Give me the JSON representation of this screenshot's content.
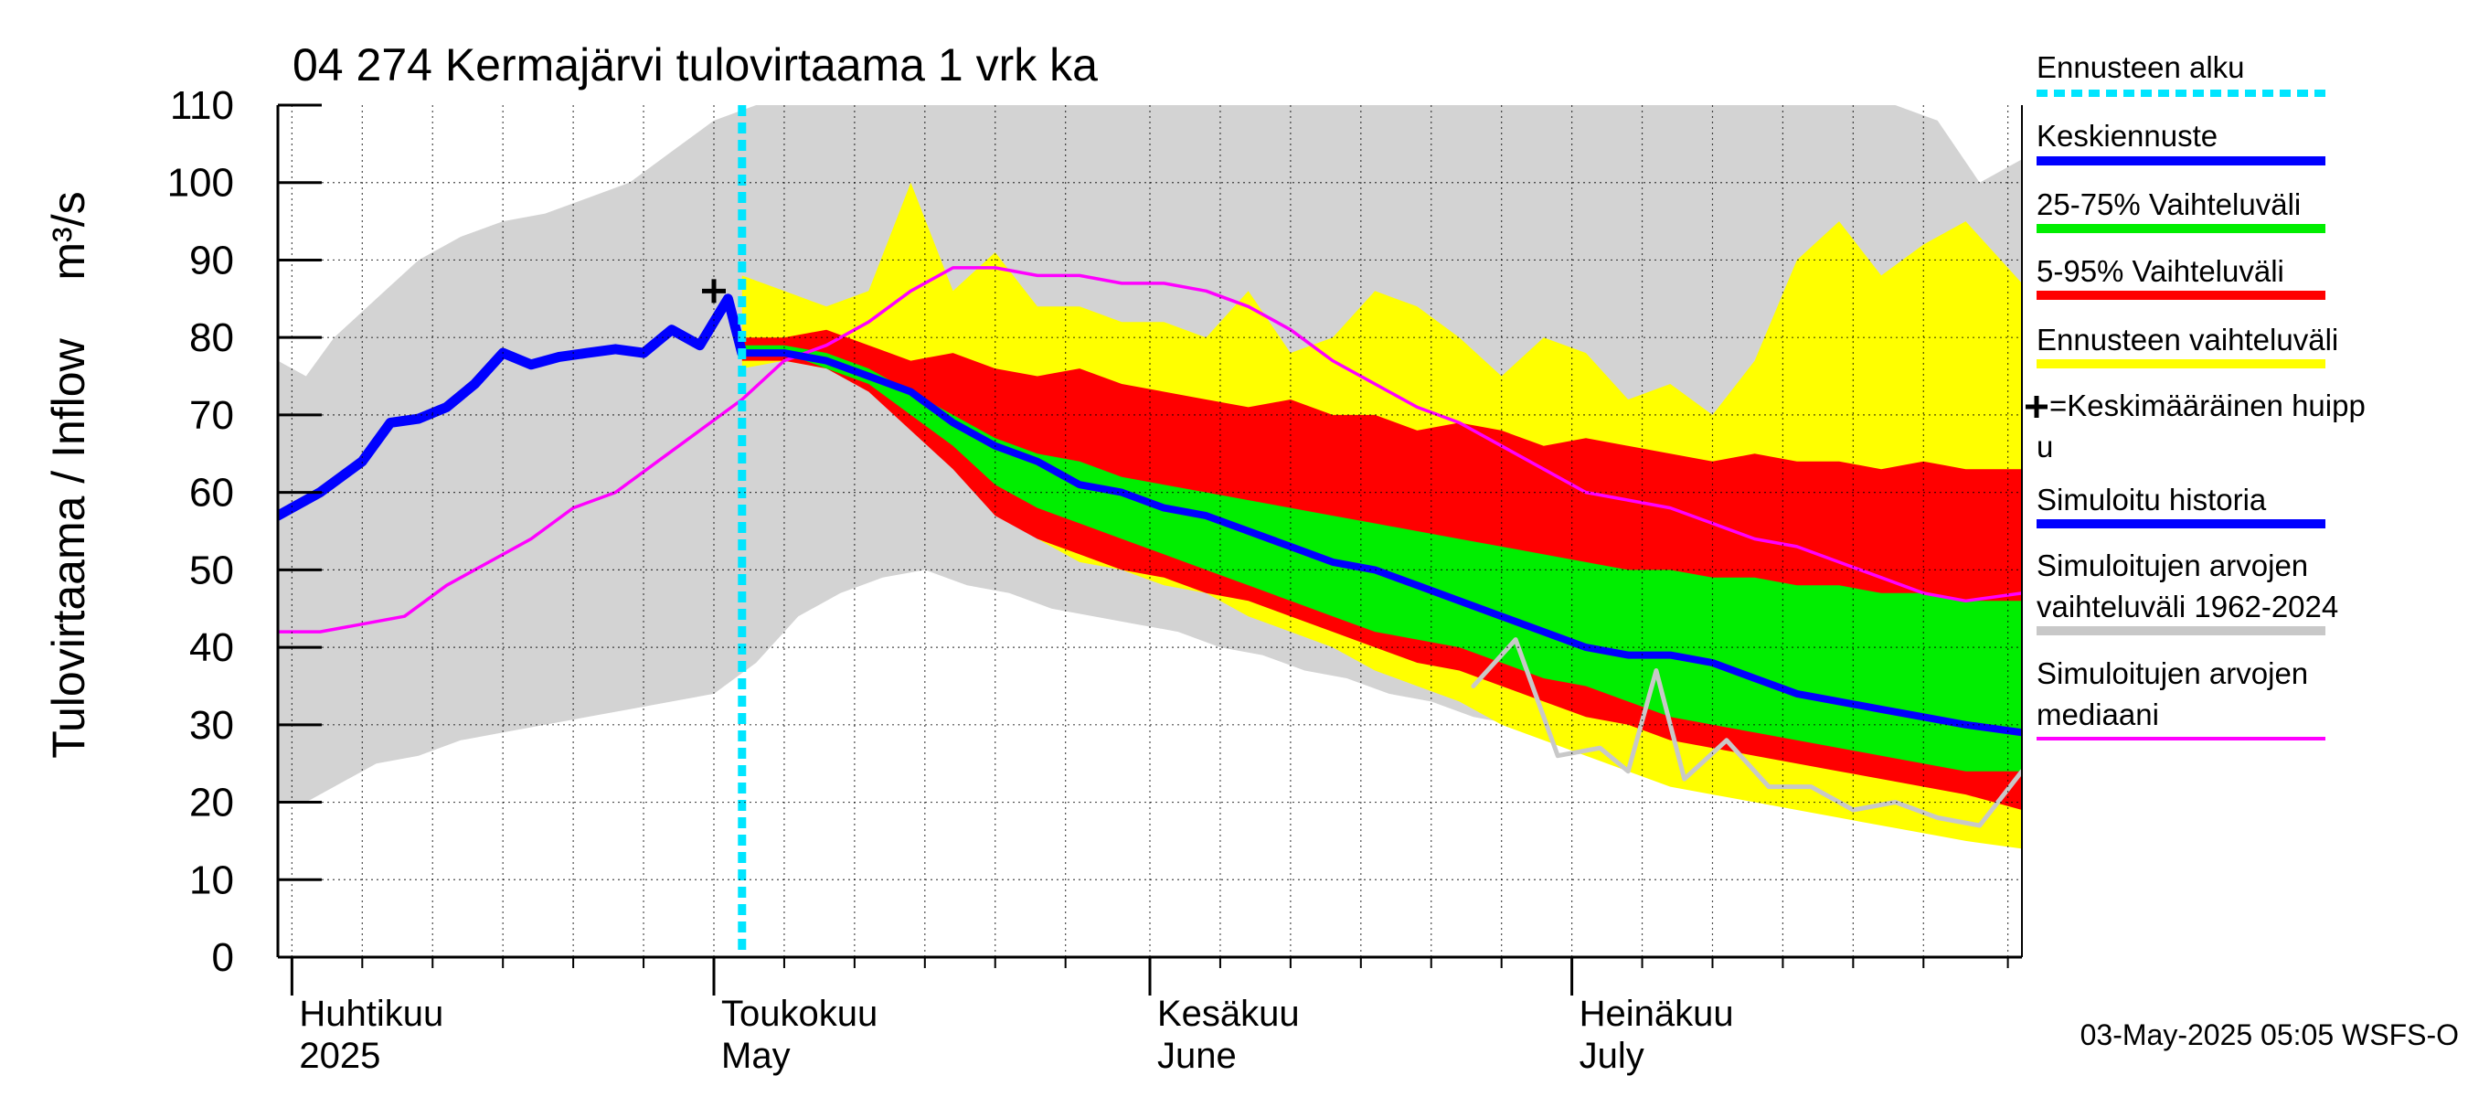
{
  "chart_data": {
    "type": "area",
    "title": "04 274 Kermajärvi tulovirtaama 1 vrk ka",
    "ylabel": "Tulovirtaama / Inflow",
    "yunit": "m³/s",
    "ylim": [
      0,
      110
    ],
    "yticks": [
      "0",
      "10",
      "20",
      "30",
      "40",
      "50",
      "60",
      "70",
      "80",
      "90",
      "100",
      "110"
    ],
    "xlim": [
      "2025-03-31",
      "2025-08-02"
    ],
    "grid": true,
    "month_labels": [
      {
        "date": "2025-04-01",
        "line1": "Huhtikuu",
        "line2": "2025"
      },
      {
        "date": "2025-05-01",
        "line1": "Toukokuu",
        "line2": "May"
      },
      {
        "date": "2025-06-01",
        "line1": "Kesäkuu",
        "line2": "June"
      },
      {
        "date": "2025-07-01",
        "line1": "Heinäkuu",
        "line2": "July"
      }
    ],
    "forecast_start": "2025-05-03",
    "mean_peak": {
      "date": "2025-05-01",
      "value": 86
    },
    "historical_range": {
      "dates": [
        "2025-03-31",
        "2025-04-02",
        "2025-04-04",
        "2025-04-07",
        "2025-04-10",
        "2025-04-13",
        "2025-04-16",
        "2025-04-19",
        "2025-04-22",
        "2025-04-25",
        "2025-04-28",
        "2025-05-01",
        "2025-05-04",
        "2025-05-07",
        "2025-05-10",
        "2025-05-13",
        "2025-05-16",
        "2025-05-19",
        "2025-05-22",
        "2025-05-25",
        "2025-05-28",
        "2025-05-31",
        "2025-06-03",
        "2025-06-06",
        "2025-06-09",
        "2025-06-12",
        "2025-06-15",
        "2025-06-18",
        "2025-06-21",
        "2025-06-24",
        "2025-06-27",
        "2025-06-30",
        "2025-07-03",
        "2025-07-06",
        "2025-07-09",
        "2025-07-12",
        "2025-07-15",
        "2025-07-18",
        "2025-07-21",
        "2025-07-24",
        "2025-07-27",
        "2025-07-30",
        "2025-08-02"
      ],
      "upper": [
        77,
        75,
        80,
        85,
        90,
        93,
        95,
        96,
        98,
        100,
        104,
        108,
        110,
        110,
        110,
        110,
        110,
        110,
        110,
        110,
        110,
        110,
        110,
        110,
        110,
        110,
        110,
        110,
        110,
        110,
        110,
        110,
        110,
        110,
        110,
        110,
        110,
        110,
        110,
        110,
        108,
        100,
        103
      ],
      "lower": [
        20,
        20,
        22,
        25,
        26,
        28,
        29,
        30,
        31,
        32,
        33,
        34,
        38,
        44,
        47,
        49,
        50,
        48,
        47,
        45,
        44,
        43,
        42,
        40,
        39,
        37,
        36,
        34,
        33,
        31,
        30,
        28,
        27,
        26,
        25,
        24,
        23,
        22,
        22,
        21,
        21,
        20,
        20
      ]
    },
    "forecast_range": {
      "dates": [
        "2025-05-03",
        "2025-05-06",
        "2025-05-09",
        "2025-05-12",
        "2025-05-15",
        "2025-05-18",
        "2025-05-21",
        "2025-05-24",
        "2025-05-27",
        "2025-05-30",
        "2025-06-02",
        "2025-06-05",
        "2025-06-08",
        "2025-06-11",
        "2025-06-14",
        "2025-06-17",
        "2025-06-20",
        "2025-06-23",
        "2025-06-26",
        "2025-06-29",
        "2025-07-02",
        "2025-07-05",
        "2025-07-08",
        "2025-07-11",
        "2025-07-14",
        "2025-07-17",
        "2025-07-20",
        "2025-07-23",
        "2025-07-26",
        "2025-07-29",
        "2025-08-02"
      ],
      "upper": [
        88,
        86,
        84,
        86,
        100,
        86,
        91,
        84,
        84,
        82,
        82,
        80,
        86,
        78,
        80,
        86,
        84,
        80,
        75,
        80,
        78,
        72,
        74,
        70,
        77,
        90,
        95,
        88,
        92,
        95,
        87
      ],
      "lower": [
        76,
        77,
        76,
        74,
        70,
        65,
        59,
        54,
        51,
        50,
        48,
        47,
        44,
        42,
        40,
        37,
        35,
        33,
        30,
        28,
        26,
        24,
        22,
        21,
        20,
        19,
        18,
        17,
        16,
        15,
        14
      ]
    },
    "band_5_95": {
      "dates": [
        "2025-05-03",
        "2025-05-06",
        "2025-05-09",
        "2025-05-12",
        "2025-05-15",
        "2025-05-18",
        "2025-05-21",
        "2025-05-24",
        "2025-05-27",
        "2025-05-30",
        "2025-06-02",
        "2025-06-05",
        "2025-06-08",
        "2025-06-11",
        "2025-06-14",
        "2025-06-17",
        "2025-06-20",
        "2025-06-23",
        "2025-06-26",
        "2025-06-29",
        "2025-07-02",
        "2025-07-05",
        "2025-07-08",
        "2025-07-11",
        "2025-07-14",
        "2025-07-17",
        "2025-07-20",
        "2025-07-23",
        "2025-07-26",
        "2025-07-29",
        "2025-08-02"
      ],
      "upper": [
        80,
        80,
        81,
        79,
        77,
        78,
        76,
        75,
        76,
        74,
        73,
        72,
        71,
        72,
        70,
        70,
        68,
        69,
        68,
        66,
        67,
        66,
        65,
        64,
        65,
        64,
        64,
        63,
        64,
        63,
        63
      ],
      "lower": [
        77,
        77,
        76,
        73,
        68,
        63,
        57,
        54,
        52,
        50,
        49,
        47,
        46,
        44,
        42,
        40,
        38,
        37,
        35,
        33,
        31,
        30,
        28,
        27,
        26,
        25,
        24,
        23,
        22,
        21,
        19
      ]
    },
    "band_25_75": {
      "dates": [
        "2025-05-03",
        "2025-05-06",
        "2025-05-09",
        "2025-05-12",
        "2025-05-15",
        "2025-05-18",
        "2025-05-21",
        "2025-05-24",
        "2025-05-27",
        "2025-05-30",
        "2025-06-02",
        "2025-06-05",
        "2025-06-08",
        "2025-06-11",
        "2025-06-14",
        "2025-06-17",
        "2025-06-20",
        "2025-06-23",
        "2025-06-26",
        "2025-06-29",
        "2025-07-02",
        "2025-07-05",
        "2025-07-08",
        "2025-07-11",
        "2025-07-14",
        "2025-07-17",
        "2025-07-20",
        "2025-07-23",
        "2025-07-26",
        "2025-07-29",
        "2025-08-02"
      ],
      "upper": [
        79,
        79,
        78,
        76,
        73,
        70,
        67,
        65,
        64,
        62,
        61,
        60,
        59,
        58,
        57,
        56,
        55,
        54,
        53,
        52,
        51,
        50,
        50,
        49,
        49,
        48,
        48,
        47,
        47,
        46,
        46
      ],
      "lower": [
        78,
        78,
        76,
        74,
        70,
        66,
        61,
        58,
        56,
        54,
        52,
        50,
        48,
        46,
        44,
        42,
        41,
        40,
        38,
        36,
        35,
        33,
        31,
        30,
        29,
        28,
        27,
        26,
        25,
        24,
        24
      ]
    },
    "simulated_history": {
      "dates": [
        "2025-03-31",
        "2025-04-03",
        "2025-04-06",
        "2025-04-08",
        "2025-04-10",
        "2025-04-12",
        "2025-04-14",
        "2025-04-16",
        "2025-04-18",
        "2025-04-20",
        "2025-04-22",
        "2025-04-24",
        "2025-04-26",
        "2025-04-28",
        "2025-04-30",
        "2025-05-01",
        "2025-05-02",
        "2025-05-03"
      ],
      "values": [
        57,
        60,
        64,
        69,
        69.5,
        71,
        74,
        78,
        76.5,
        77.5,
        78,
        78.5,
        78,
        81,
        79,
        82,
        85,
        78
      ]
    },
    "mean_forecast": {
      "dates": [
        "2025-05-03",
        "2025-05-06",
        "2025-05-09",
        "2025-05-12",
        "2025-05-15",
        "2025-05-18",
        "2025-05-21",
        "2025-05-24",
        "2025-05-27",
        "2025-05-30",
        "2025-06-02",
        "2025-06-05",
        "2025-06-08",
        "2025-06-11",
        "2025-06-14",
        "2025-06-17",
        "2025-06-20",
        "2025-06-23",
        "2025-06-26",
        "2025-06-29",
        "2025-07-02",
        "2025-07-05",
        "2025-07-08",
        "2025-07-11",
        "2025-07-14",
        "2025-07-17",
        "2025-07-20",
        "2025-07-23",
        "2025-07-26",
        "2025-07-29",
        "2025-08-02"
      ],
      "values": [
        78,
        78,
        77,
        75,
        73,
        69,
        66,
        64,
        61,
        60,
        58,
        57,
        55,
        53,
        51,
        50,
        48,
        46,
        44,
        42,
        40,
        39,
        39,
        38,
        36,
        34,
        33,
        32,
        31,
        30,
        29
      ]
    },
    "historical_median": {
      "dates": [
        "2025-03-31",
        "2025-04-03",
        "2025-04-06",
        "2025-04-09",
        "2025-04-12",
        "2025-04-15",
        "2025-04-18",
        "2025-04-21",
        "2025-04-24",
        "2025-04-27",
        "2025-04-30",
        "2025-05-03",
        "2025-05-06",
        "2025-05-09",
        "2025-05-12",
        "2025-05-15",
        "2025-05-18",
        "2025-05-21",
        "2025-05-24",
        "2025-05-27",
        "2025-05-30",
        "2025-06-02",
        "2025-06-05",
        "2025-06-08",
        "2025-06-11",
        "2025-06-14",
        "2025-06-17",
        "2025-06-20",
        "2025-06-23",
        "2025-06-26",
        "2025-06-29",
        "2025-07-02",
        "2025-07-05",
        "2025-07-08",
        "2025-07-11",
        "2025-07-14",
        "2025-07-17",
        "2025-07-20",
        "2025-07-23",
        "2025-07-26",
        "2025-07-29",
        "2025-08-02"
      ],
      "values": [
        42,
        42,
        43,
        44,
        48,
        51,
        54,
        58,
        60,
        64,
        68,
        72,
        77,
        79,
        82,
        86,
        89,
        89,
        88,
        88,
        87,
        87,
        86,
        84,
        81,
        77,
        74,
        71,
        69,
        66,
        63,
        60,
        59,
        58,
        56,
        54,
        53,
        51,
        49,
        47,
        46,
        47
      ]
    },
    "simulated_range_low_line": {
      "dates": [
        "2025-06-24",
        "2025-06-27",
        "2025-06-30",
        "2025-07-03",
        "2025-07-05",
        "2025-07-07",
        "2025-07-09",
        "2025-07-12",
        "2025-07-15",
        "2025-07-18",
        "2025-07-21",
        "2025-07-24",
        "2025-07-27",
        "2025-07-30",
        "2025-08-02"
      ],
      "values": [
        35,
        41,
        26,
        27,
        24,
        37,
        23,
        28,
        22,
        22,
        19,
        20,
        18,
        17,
        24
      ]
    },
    "footer": "03-May-2025 05:05 WSFS-O"
  },
  "legend": [
    {
      "label": "Ennusteen alku",
      "color": "#00e5ff",
      "style": "dotted"
    },
    {
      "label": "Keskiennuste",
      "color": "#0000ff",
      "style": "solid"
    },
    {
      "label": "25-75% Vaihteluväli",
      "color": "#00ee00",
      "style": "solid"
    },
    {
      "label": "5-95% Vaihteluväli",
      "color": "#ff0000",
      "style": "solid"
    },
    {
      "label": "Ennusteen vaihteluväli",
      "color": "#ffff00",
      "style": "solid"
    },
    {
      "label": "=Keskimääräinen huipp",
      "label2": "u",
      "marker": "plus"
    },
    {
      "label": "Simuloitu historia",
      "color": "#0000ff",
      "style": "solid"
    },
    {
      "label": "Simuloitujen arvojen",
      "label2": "vaihteluväli 1962-2024",
      "color": "#c8c8c8",
      "style": "solid"
    },
    {
      "label": "Simuloitujen arvojen",
      "label2": "mediaani",
      "color": "#ff00ff",
      "style": "thin"
    }
  ],
  "colors": {
    "grey": "#d3d3d3",
    "yellow": "#ffff00",
    "red": "#ff0000",
    "green": "#00ee00",
    "blue": "#0000ff",
    "magenta": "#ff00ff",
    "cyan": "#00e5ff"
  }
}
